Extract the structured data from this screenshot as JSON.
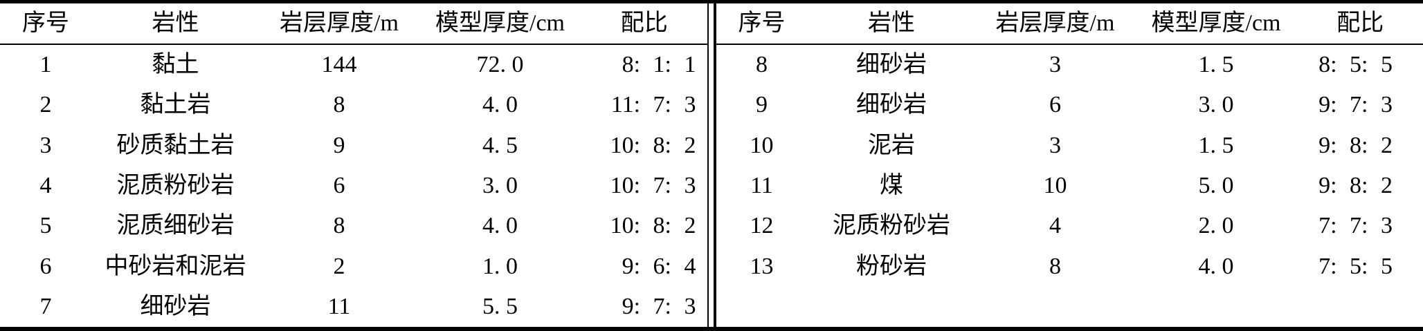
{
  "table": {
    "columns": [
      "序号",
      "岩性",
      "岩层厚度/m",
      "模型厚度/cm",
      "配比"
    ],
    "left_rows": [
      [
        "1",
        "黏土",
        "144",
        "72. 0",
        "8: 1: 1"
      ],
      [
        "2",
        "黏土岩",
        "8",
        "4. 0",
        "11: 7: 3"
      ],
      [
        "3",
        "砂质黏土岩",
        "9",
        "4. 5",
        "10: 8: 2"
      ],
      [
        "4",
        "泥质粉砂岩",
        "6",
        "3. 0",
        "10: 7: 3"
      ],
      [
        "5",
        "泥质细砂岩",
        "8",
        "4. 0",
        "10: 8: 2"
      ],
      [
        "6",
        "中砂岩和泥岩",
        "2",
        "1. 0",
        "9: 6: 4"
      ],
      [
        "7",
        "细砂岩",
        "11",
        "5. 5",
        "9: 7: 3"
      ]
    ],
    "right_rows": [
      [
        "8",
        "细砂岩",
        "3",
        "1. 5",
        "8: 5: 5"
      ],
      [
        "9",
        "细砂岩",
        "6",
        "3. 0",
        "9: 7: 3"
      ],
      [
        "10",
        "泥岩",
        "3",
        "1. 5",
        "9: 8: 2"
      ],
      [
        "11",
        "煤",
        "10",
        "5. 0",
        "9: 8: 2"
      ],
      [
        "12",
        "泥质粉砂岩",
        "4",
        "2. 0",
        "7: 7: 3"
      ],
      [
        "13",
        "粉砂岩",
        "8",
        "4. 0",
        "7: 5: 5"
      ]
    ],
    "colors": {
      "text": "#000000",
      "background": "#ffffff",
      "rule": "#000000"
    }
  }
}
